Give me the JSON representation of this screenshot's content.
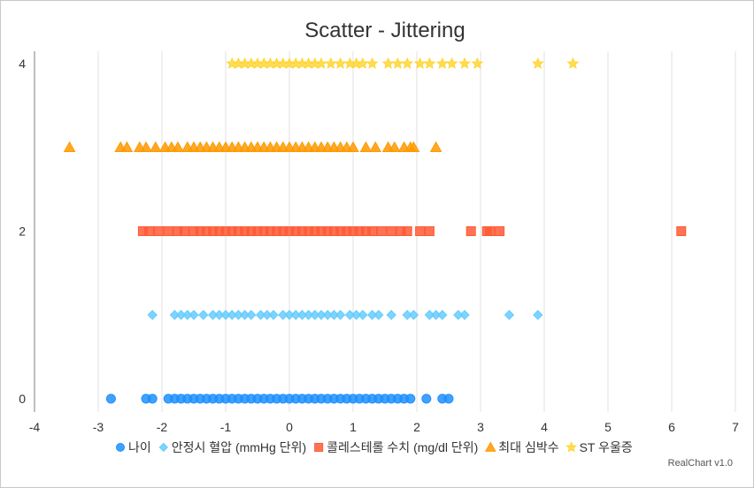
{
  "chart_data": {
    "type": "scatter",
    "title": "Scatter - Jittering",
    "credit": "RealChart v1.0",
    "xlim": [
      -4,
      7
    ],
    "ylim": [
      0,
      4
    ],
    "x_ticks": [
      "-4",
      "-3",
      "-2",
      "-1",
      "0",
      "1",
      "2",
      "3",
      "4",
      "5",
      "6",
      "7"
    ],
    "y_ticks": [
      "0",
      "2",
      "4"
    ],
    "grid": "vertical",
    "legend_position": "bottom",
    "series": [
      {
        "name": "나이",
        "color": "#1e90ff",
        "shape": "circle",
        "y": 0,
        "x": [
          -2.8,
          -2.25,
          -2.15,
          -1.9,
          -1.8,
          -1.7,
          -1.6,
          -1.5,
          -1.4,
          -1.3,
          -1.2,
          -1.1,
          -1.0,
          -0.9,
          -0.8,
          -0.7,
          -0.6,
          -0.5,
          -0.4,
          -0.3,
          -0.2,
          -0.1,
          0.0,
          0.1,
          0.2,
          0.3,
          0.4,
          0.5,
          0.6,
          0.7,
          0.8,
          0.9,
          1.0,
          1.1,
          1.2,
          1.3,
          1.4,
          1.5,
          1.6,
          1.7,
          1.8,
          1.9,
          2.15,
          2.4,
          2.5
        ]
      },
      {
        "name": "안정시 혈압 (mmHg 단위)",
        "color": "#66ccff",
        "shape": "diamond",
        "y": 1,
        "x": [
          -2.15,
          -1.8,
          -1.7,
          -1.6,
          -1.5,
          -1.35,
          -1.2,
          -1.1,
          -1.0,
          -0.9,
          -0.8,
          -0.7,
          -0.6,
          -0.45,
          -0.35,
          -0.25,
          -0.1,
          0.0,
          0.1,
          0.2,
          0.3,
          0.4,
          0.5,
          0.6,
          0.7,
          0.8,
          0.95,
          1.05,
          1.15,
          1.3,
          1.4,
          1.6,
          1.85,
          1.95,
          2.2,
          2.3,
          2.4,
          2.65,
          2.75,
          3.45,
          3.9
        ]
      },
      {
        "name": "콜레스테롤 수치 (mg/dl 단위)",
        "color": "#ff5a36",
        "shape": "square",
        "y": 2,
        "x": [
          -2.3,
          -2.2,
          -2.05,
          -1.9,
          -1.75,
          -1.65,
          -1.5,
          -1.4,
          -1.3,
          -1.2,
          -1.1,
          -1.0,
          -0.9,
          -0.8,
          -0.7,
          -0.6,
          -0.5,
          -0.4,
          -0.3,
          -0.2,
          -0.1,
          0.0,
          0.1,
          0.2,
          0.3,
          0.4,
          0.5,
          0.6,
          0.7,
          0.8,
          0.9,
          1.0,
          1.1,
          1.2,
          1.3,
          1.45,
          1.6,
          1.75,
          1.85,
          2.05,
          2.2,
          2.85,
          3.1,
          3.15,
          3.3,
          6.15
        ]
      },
      {
        "name": "최대 심박수",
        "color": "#ff9900",
        "shape": "triangle",
        "y": 3,
        "x": [
          -3.45,
          -2.65,
          -2.55,
          -2.35,
          -2.25,
          -2.1,
          -1.95,
          -1.85,
          -1.75,
          -1.6,
          -1.5,
          -1.4,
          -1.3,
          -1.2,
          -1.1,
          -1.0,
          -0.9,
          -0.8,
          -0.7,
          -0.6,
          -0.5,
          -0.4,
          -0.3,
          -0.2,
          -0.1,
          0.0,
          0.1,
          0.2,
          0.3,
          0.4,
          0.5,
          0.6,
          0.7,
          0.8,
          0.9,
          1.0,
          1.2,
          1.35,
          1.55,
          1.65,
          1.8,
          1.9,
          1.95,
          2.3
        ]
      },
      {
        "name": "ST 우울증",
        "color": "#ffd633",
        "shape": "star",
        "y": 4,
        "x": [
          -0.9,
          -0.8,
          -0.7,
          -0.6,
          -0.5,
          -0.4,
          -0.3,
          -0.2,
          -0.1,
          0.0,
          0.1,
          0.2,
          0.3,
          0.4,
          0.5,
          0.65,
          0.8,
          0.95,
          1.05,
          1.15,
          1.3,
          1.55,
          1.7,
          1.85,
          2.05,
          2.2,
          2.4,
          2.55,
          2.75,
          2.95,
          3.9,
          4.45
        ]
      }
    ]
  }
}
